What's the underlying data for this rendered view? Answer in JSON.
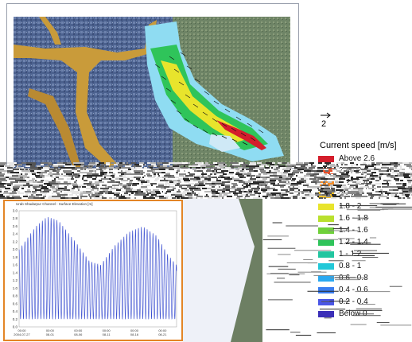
{
  "map": {
    "title": "",
    "vector_scale_value": "2",
    "legend": {
      "title": "Current speed [m/s]",
      "rows": [
        {
          "label": "Above 2.6",
          "color": "#d41e2c"
        },
        {
          "label": "2.4 - 2.6",
          "color": "#e8502a"
        },
        {
          "label": "2.2 - 2.4",
          "color": "#f28c2a"
        },
        {
          "label": "2 - 2.2",
          "color": "#f7c22c"
        },
        {
          "label": "1.8 - 2",
          "color": "#e8e42c"
        },
        {
          "label": "1.6 - 1.8",
          "color": "#b9e02e"
        },
        {
          "label": "1.4 - 1.6",
          "color": "#6fd13a"
        },
        {
          "label": "1.2 - 1.4",
          "color": "#2fc45a"
        },
        {
          "label": "1 - 1.2",
          "color": "#22c6a0"
        },
        {
          "label": "0.8 - 1",
          "color": "#22c8d8"
        },
        {
          "label": "0.6 - 0.8",
          "color": "#2aa8f0"
        },
        {
          "label": "0.4 - 0.6",
          "color": "#3a7ef0"
        },
        {
          "label": "0.2 - 0.4",
          "color": "#4a56e6"
        },
        {
          "label": "Below 0",
          "color": "#3b2fb8"
        }
      ]
    },
    "colors": {
      "sea": "#8fdcf2",
      "channel_fast": "#d41e2c",
      "sediment": "#c99b3a",
      "land": "#5a6f9a"
    }
  },
  "chart_inset": {
    "title": "Urab Shadarpur Channel : Surface Elevation [m]",
    "accent_color": "#e38526",
    "line_color": "#3b4fd0"
  },
  "chart_data": {
    "type": "line",
    "title": "Urab Shadarpur Channel : Surface Elevation [m]",
    "ylabel": "",
    "ylim": [
      0,
      3
    ],
    "y_ticks": [
      "3.0",
      "2.8",
      "2.6",
      "2.4",
      "2.2",
      "2.0",
      "1.8",
      "1.6",
      "1.4",
      "1.2",
      "1.0",
      "0.8",
      "0.6",
      "0.4",
      "0.2",
      "0.0"
    ],
    "x_ticks": [
      {
        "time": "00:00",
        "date": "2004-07-27"
      },
      {
        "time": "00:00",
        "date": "08-01"
      },
      {
        "time": "00:00",
        "date": "08-06"
      },
      {
        "time": "00:00",
        "date": "08-11"
      },
      {
        "time": "00:00",
        "date": "08-16"
      },
      {
        "time": "00:00",
        "date": "08-21"
      }
    ],
    "x_range_days": [
      0,
      28
    ],
    "series": [
      {
        "tidal_period_days": 0.5175,
        "minimum": 0.2,
        "peaks": [
          {
            "day": 0,
            "max": 2.0
          },
          {
            "day": 3,
            "max": 2.6
          },
          {
            "day": 5,
            "max": 2.85
          },
          {
            "day": 7,
            "max": 2.75
          },
          {
            "day": 10,
            "max": 2.2
          },
          {
            "day": 12.5,
            "max": 1.7
          },
          {
            "day": 14.5,
            "max": 1.6
          },
          {
            "day": 17,
            "max": 2.1
          },
          {
            "day": 19.5,
            "max": 2.45
          },
          {
            "day": 22,
            "max": 2.6
          },
          {
            "day": 24.5,
            "max": 2.35
          },
          {
            "day": 26.5,
            "max": 1.85
          },
          {
            "day": 28,
            "max": 1.6
          }
        ]
      }
    ]
  }
}
